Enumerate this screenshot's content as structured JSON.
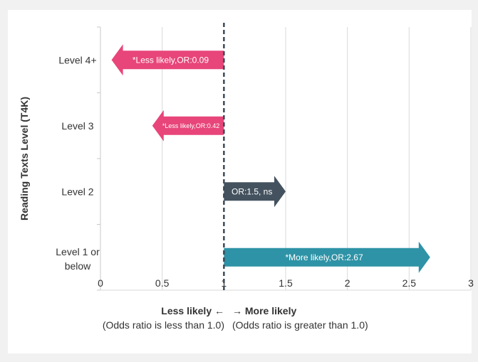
{
  "chart_data": {
    "type": "bar",
    "orientation": "horizontal",
    "ylabel": "Reading Texts Level (T4K)",
    "xlabel": "",
    "xlim": [
      0,
      3
    ],
    "x_ticks": [
      "0",
      "0.5",
      "1",
      "1.5",
      "2",
      "2.5",
      "3"
    ],
    "reference_line": 1,
    "baseline": 1,
    "grid": true,
    "categories": [
      "Level 4+",
      "Level 3",
      "Level 2",
      "Level 1 or below"
    ],
    "bars": [
      {
        "category": "Level 4+",
        "value": 0.09,
        "label": "*Less likely,OR:0.09",
        "color": "#e8457a"
      },
      {
        "category": "Level 3",
        "value": 0.42,
        "label": "*Less likely,OR:0.42",
        "color": "#e8457a"
      },
      {
        "category": "Level 2",
        "value": 1.5,
        "label": "OR:1.5, ns",
        "color": "#44525f"
      },
      {
        "category": "Level 1 or below",
        "value": 2.67,
        "label": "*More likely,OR:2.67",
        "color": "#2e93a6"
      }
    ]
  },
  "legend": {
    "less_title": "Less likely",
    "less_arrow": "←",
    "less_note": "(Odds ratio is less than 1.0)",
    "more_title": "More likely",
    "more_arrow": "→",
    "more_note": "(Odds ratio is greater than 1.0)"
  },
  "colors": {
    "less": "#e8457a",
    "ns": "#44525f",
    "more": "#2e93a6",
    "reference_line": "#3c4a58"
  }
}
